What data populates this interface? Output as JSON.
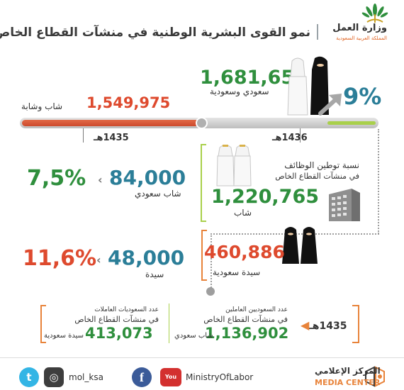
{
  "header": {
    "title": "نمو القوى البشرية الوطنية في منشآت القطاع الخاص",
    "ministry_name": "وزارة العمل",
    "ministry_sub": "المملكة العربية السعودية"
  },
  "top": {
    "saudi_total": "1,681,651",
    "saudi_total_label": "سعودي وسعودية",
    "growth_pct": "9%",
    "youth_total": "1,549,975",
    "youth_total_label": "شاب وشابة"
  },
  "timeline": {
    "year_left": "1435هـ",
    "year_right": "1436هـ"
  },
  "jobs": {
    "title": "نسبة توطين الوظائف",
    "subtitle": "في منشآت القطاع الخاص",
    "male_total": "1,220,765",
    "male_label": "شاب",
    "female_total": "460,886",
    "female_label": "سيدة سعودية"
  },
  "growth": {
    "male_new": "84,000",
    "male_new_label": "شاب سعودي",
    "male_pct": "7,5%",
    "female_new": "48,000",
    "female_new_label": "سيدة",
    "female_pct": "11,6%"
  },
  "baseline": {
    "year": "1435هـ",
    "male_title": "عدد السعوديين العاملين",
    "male_subtitle": "في منشآت القطاع الخاص",
    "male_value": "1,136,902",
    "male_unit": "شاب سعودي",
    "female_title": "عدد السعوديات العاملات",
    "female_subtitle": "في منشآت القطاع الخاص",
    "female_value": "413,073",
    "female_unit": "سيدة سعودية"
  },
  "footer": {
    "twitter_handle": "mol_ksa",
    "youtube_handle": "MinistryOfLabor",
    "media_center_ar": "المركز الإعلامي",
    "media_center_en": "MEDIA CENTER",
    "facebook_glyph": "f",
    "youtube_glyph": "You Tube",
    "twitter_glyph": "t",
    "instagram_glyph": "◎"
  },
  "colors": {
    "green": "#2f8f3d",
    "teal": "#2b7e98",
    "red": "#de4a2e",
    "orange": "#e8833a",
    "lime": "#a9d04b"
  },
  "progress": {
    "fill_fraction": 0.5
  }
}
